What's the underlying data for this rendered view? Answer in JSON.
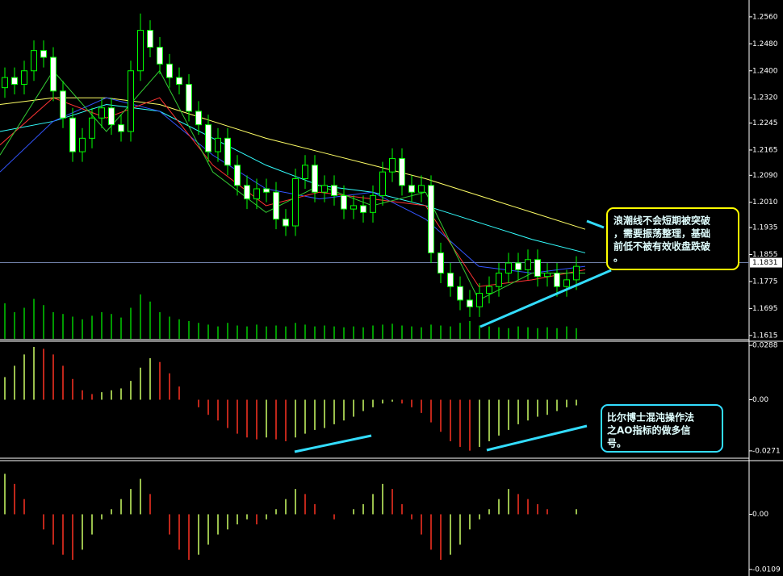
{
  "chart_data": [
    {
      "type": "candlestick",
      "color": "#00ff00",
      "open": [
        1.235,
        1.238,
        1.236,
        1.24,
        1.246,
        1.244,
        1.234,
        1.226,
        1.216,
        1.22,
        1.226,
        1.229,
        1.224,
        1.222,
        1.24,
        1.252,
        1.247,
        1.242,
        1.238,
        1.236,
        1.228,
        1.224,
        1.216,
        1.22,
        1.212,
        1.206,
        1.202,
        1.205,
        1.204,
        1.196,
        1.194,
        1.208,
        1.212,
        1.204,
        1.206,
        1.203,
        1.199,
        1.2,
        1.198,
        1.203,
        1.21,
        1.214,
        1.206,
        1.204,
        1.206,
        1.186,
        1.18,
        1.176,
        1.172,
        1.17,
        1.174,
        1.176,
        1.18,
        1.183,
        1.181,
        1.184,
        1.179,
        1.18,
        1.176,
        1.178
      ],
      "high": [
        1.241,
        1.241,
        1.243,
        1.249,
        1.249,
        1.247,
        1.237,
        1.229,
        1.223,
        1.229,
        1.232,
        1.232,
        1.227,
        1.243,
        1.257,
        1.255,
        1.25,
        1.245,
        1.241,
        1.239,
        1.231,
        1.227,
        1.223,
        1.223,
        1.215,
        1.209,
        1.208,
        1.208,
        1.207,
        1.199,
        1.211,
        1.215,
        1.215,
        1.209,
        1.209,
        1.206,
        1.203,
        1.203,
        1.206,
        1.213,
        1.217,
        1.217,
        1.209,
        1.209,
        1.209,
        1.189,
        1.183,
        1.179,
        1.175,
        1.177,
        1.179,
        1.183,
        1.186,
        1.186,
        1.187,
        1.187,
        1.183,
        1.183,
        1.181,
        1.185
      ],
      "low": [
        1.232,
        1.233,
        1.233,
        1.237,
        1.241,
        1.231,
        1.223,
        1.213,
        1.213,
        1.217,
        1.223,
        1.221,
        1.219,
        1.219,
        1.237,
        1.244,
        1.239,
        1.235,
        1.233,
        1.225,
        1.221,
        1.213,
        1.213,
        1.209,
        1.203,
        1.199,
        1.199,
        1.201,
        1.193,
        1.191,
        1.191,
        1.205,
        1.201,
        1.201,
        1.2,
        1.196,
        1.196,
        1.195,
        1.195,
        1.2,
        1.207,
        1.203,
        1.201,
        1.201,
        1.183,
        1.177,
        1.173,
        1.169,
        1.167,
        1.167,
        1.171,
        1.173,
        1.177,
        1.178,
        1.178,
        1.176,
        1.176,
        1.173,
        1.173,
        1.175
      ],
      "close": [
        1.238,
        1.236,
        1.24,
        1.246,
        1.244,
        1.234,
        1.226,
        1.216,
        1.22,
        1.226,
        1.229,
        1.224,
        1.222,
        1.24,
        1.252,
        1.247,
        1.242,
        1.238,
        1.236,
        1.228,
        1.224,
        1.216,
        1.22,
        1.212,
        1.206,
        1.202,
        1.205,
        1.204,
        1.196,
        1.194,
        1.208,
        1.212,
        1.204,
        1.206,
        1.203,
        1.199,
        1.2,
        1.198,
        1.203,
        1.21,
        1.214,
        1.206,
        1.204,
        1.206,
        1.186,
        1.18,
        1.176,
        1.172,
        1.17,
        1.174,
        1.176,
        1.18,
        1.183,
        1.181,
        1.184,
        1.179,
        1.18,
        1.176,
        1.178,
        1.182
      ],
      "volume": [
        40,
        30,
        35,
        45,
        38,
        30,
        28,
        25,
        22,
        26,
        30,
        28,
        24,
        35,
        50,
        42,
        30,
        25,
        22,
        20,
        18,
        16,
        14,
        18,
        15,
        14,
        16,
        14,
        15,
        14,
        18,
        16,
        14,
        15,
        14,
        13,
        14,
        13,
        15,
        16,
        17,
        15,
        14,
        13,
        16,
        15,
        14,
        18,
        20,
        15,
        14,
        13,
        12,
        14,
        13,
        12,
        13,
        12,
        14,
        12
      ],
      "volume_color": "#00cc00",
      "series": [
        {
          "color": "#ffff66",
          "values": [
            1.23,
            1.232,
            1.232,
            1.23,
            1.225,
            1.22,
            1.216,
            1.212,
            1.208,
            1.203,
            1.198,
            1.193
          ]
        },
        {
          "color": "#33ffff",
          "values": [
            1.222,
            1.225,
            1.23,
            1.228,
            1.22,
            1.212,
            1.206,
            1.204,
            1.2,
            1.195,
            1.19,
            1.186
          ]
        },
        {
          "color": "#3355ff",
          "values": [
            1.21,
            1.225,
            1.232,
            1.228,
            1.215,
            1.205,
            1.202,
            1.204,
            1.196,
            1.182,
            1.18,
            1.182
          ]
        },
        {
          "color": "#ff3333",
          "values": [
            1.218,
            1.232,
            1.226,
            1.232,
            1.212,
            1.2,
            1.204,
            1.202,
            1.2,
            1.176,
            1.178,
            1.181
          ]
        },
        {
          "color": "#33cc33",
          "values": [
            1.215,
            1.24,
            1.222,
            1.24,
            1.21,
            1.198,
            1.206,
            1.2,
            1.204,
            1.172,
            1.18,
            1.18
          ]
        }
      ],
      "ylim": [
        1.1605,
        1.261
      ],
      "yticks": [
        {
          "value": 1.256,
          "label": "1.2560"
        },
        {
          "value": 1.248,
          "label": "1.2480"
        },
        {
          "value": 1.24,
          "label": "1.2400"
        },
        {
          "value": 1.232,
          "label": "1.2320"
        },
        {
          "value": 1.2245,
          "label": "1.2245"
        },
        {
          "value": 1.2165,
          "label": "1.2165"
        },
        {
          "value": 1.209,
          "label": "1.2090"
        },
        {
          "value": 1.201,
          "label": "1.2010"
        },
        {
          "value": 1.1935,
          "label": "1.1935"
        },
        {
          "value": 1.1855,
          "label": "1.1855"
        },
        {
          "value": 1.1775,
          "label": "1.1775"
        },
        {
          "value": 1.1695,
          "label": "1.1695"
        },
        {
          "value": 1.1615,
          "label": "1.1615"
        }
      ],
      "current_price": {
        "value": 1.1831,
        "label": "1.1831"
      },
      "annotation": [
        "浪潮线不会短期被突破",
        "，需要振荡整理，基础",
        "前低不被有效收盘跌破",
        "。"
      ]
    },
    {
      "type": "bar",
      "up_color": "#ccff66",
      "down_color": "#ff3322",
      "values": [
        0.012,
        0.018,
        0.024,
        0.028,
        0.027,
        0.024,
        0.018,
        0.011,
        0.005,
        0.003,
        0.004,
        0.005,
        0.006,
        0.01,
        0.017,
        0.022,
        0.02,
        0.014,
        0.007,
        0.0,
        -0.004,
        -0.008,
        -0.011,
        -0.015,
        -0.018,
        -0.02,
        -0.021,
        -0.02,
        -0.021,
        -0.022,
        -0.02,
        -0.018,
        -0.016,
        -0.015,
        -0.013,
        -0.011,
        -0.009,
        -0.006,
        -0.004,
        -0.002,
        -0.001,
        -0.002,
        -0.004,
        -0.007,
        -0.012,
        -0.017,
        -0.022,
        -0.025,
        -0.027,
        -0.025,
        -0.022,
        -0.019,
        -0.016,
        -0.013,
        -0.011,
        -0.009,
        -0.008,
        -0.006,
        -0.004,
        -0.003
      ],
      "ylim": [
        -0.031,
        0.031
      ],
      "yticks": [
        {
          "value": 0.0288,
          "label": "0.0288"
        },
        {
          "value": 0,
          "label": "0.00"
        },
        {
          "value": -0.0271,
          "label": "-0.0271"
        }
      ],
      "annotation": [
        "比尔博士混沌操作法",
        "之AO指标的做多信",
        "号。"
      ]
    },
    {
      "type": "bar",
      "up_color": "#ccff66",
      "down_color": "#ff3322",
      "values": [
        0.008,
        0.006,
        0.003,
        0.0,
        -0.003,
        -0.006,
        -0.008,
        -0.009,
        -0.007,
        -0.004,
        -0.001,
        0.001,
        0.003,
        0.005,
        0.007,
        0.004,
        0.0,
        -0.004,
        -0.007,
        -0.009,
        -0.008,
        -0.006,
        -0.004,
        -0.003,
        -0.002,
        -0.001,
        -0.002,
        -0.001,
        0.001,
        0.003,
        0.005,
        0.004,
        0.002,
        0.0,
        -0.001,
        0.0,
        0.001,
        0.002,
        0.004,
        0.006,
        0.005,
        0.002,
        -0.001,
        -0.004,
        -0.007,
        -0.009,
        -0.008,
        -0.006,
        -0.003,
        -0.001,
        0.001,
        0.003,
        0.005,
        0.004,
        0.003,
        0.002,
        0.001,
        0.0,
        0.0,
        0.001
      ],
      "ylim": [
        -0.0122,
        0.0106
      ],
      "yticks": [
        {
          "value": 0,
          "label": "0.00"
        },
        {
          "value": -0.0109,
          "label": "-0.0109"
        }
      ]
    }
  ]
}
